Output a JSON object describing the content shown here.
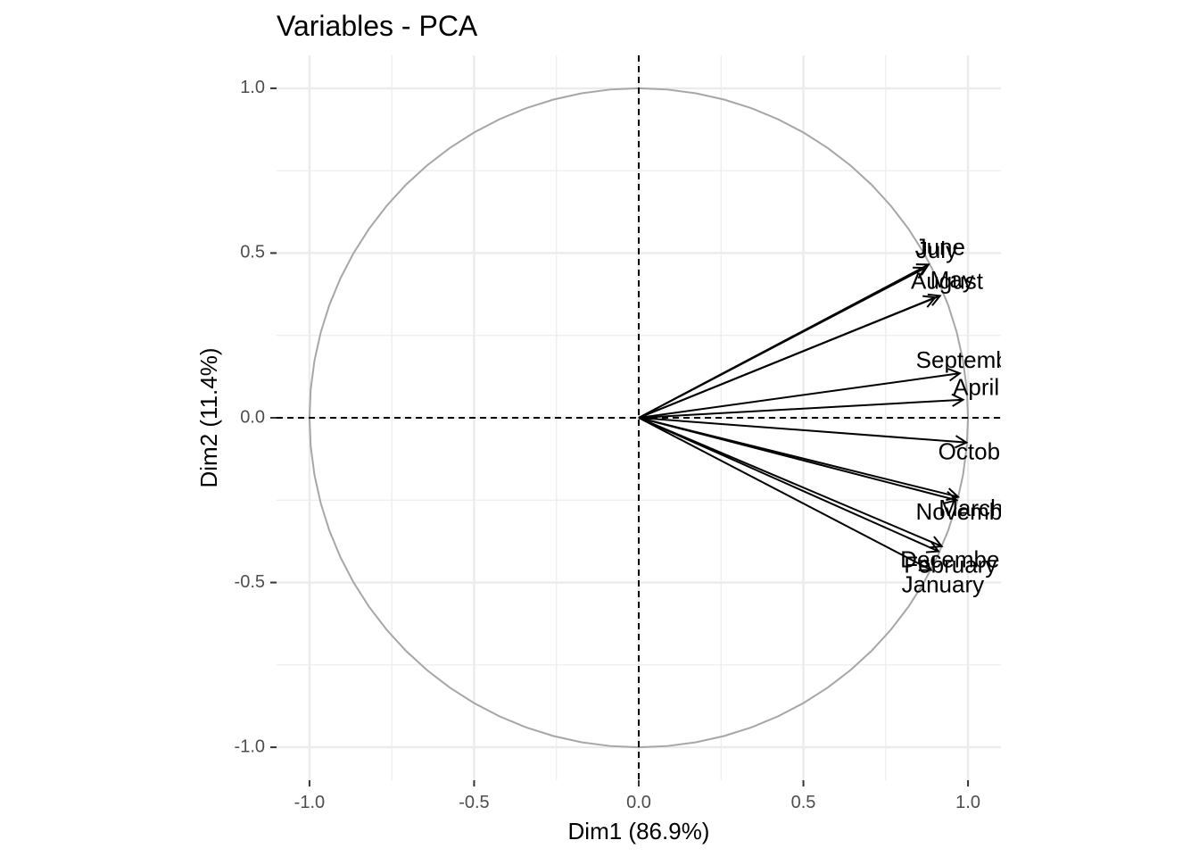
{
  "chart_data": {
    "type": "scatter",
    "subtype": "pca-correlation-circle",
    "title": "Variables - PCA",
    "xlabel": "Dim1 (86.9%)",
    "ylabel": "Dim2 (11.4%)",
    "xlim": [
      -1.1,
      1.1
    ],
    "ylim": [
      -1.1,
      1.1
    ],
    "x_ticks": [
      -1.0,
      -0.5,
      0.0,
      0.5,
      1.0
    ],
    "x_tick_labels": [
      "-1.0",
      "-0.5",
      "0.0",
      "0.5",
      "1.0"
    ],
    "y_ticks": [
      -1.0,
      -0.5,
      0.0,
      0.5,
      1.0
    ],
    "y_tick_labels": [
      "-1.0",
      "-0.5",
      "0.0",
      "0.5",
      "1.0"
    ],
    "grid": true,
    "colors": {
      "grid": "#ebebeb",
      "circle": "#a6a6a6",
      "arrow": "#000000",
      "axis_line": "#000000"
    },
    "variables": [
      {
        "name": "January",
        "x": 0.888,
        "y": -0.462
      },
      {
        "name": "February",
        "x": 0.91,
        "y": -0.405
      },
      {
        "name": "March",
        "x": 0.97,
        "y": -0.24
      },
      {
        "name": "April",
        "x": 0.985,
        "y": 0.055
      },
      {
        "name": "May",
        "x": 0.915,
        "y": 0.37
      },
      {
        "name": "June",
        "x": 0.88,
        "y": 0.465
      },
      {
        "name": "July",
        "x": 0.87,
        "y": 0.455
      },
      {
        "name": "August",
        "x": 0.9,
        "y": 0.365
      },
      {
        "name": "September",
        "x": 0.975,
        "y": 0.135
      },
      {
        "name": "October",
        "x": 0.995,
        "y": -0.075
      },
      {
        "name": "November",
        "x": 0.965,
        "y": -0.25
      },
      {
        "name": "December",
        "x": 0.92,
        "y": -0.39
      }
    ]
  }
}
